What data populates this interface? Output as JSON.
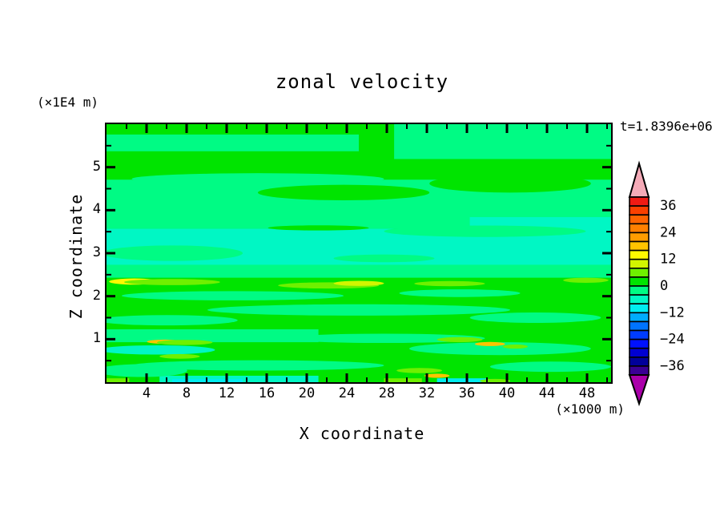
{
  "background_color": "#FFFFFF",
  "chart_data": {
    "type": "filled_contour_heatmap",
    "title": "zonal velocity",
    "time_annotation": "t=1.8396e+06",
    "xlabel": "X coordinate",
    "x_unit": "(×1000 m)",
    "zlabel": "Z coordinate",
    "z_unit": "(×1E4 m)",
    "x_range": [
      0,
      50.4
    ],
    "z_range": [
      0,
      6
    ],
    "x_major_ticks": [
      4,
      8,
      12,
      16,
      20,
      24,
      28,
      32,
      36,
      40,
      44,
      48
    ],
    "x_minor_ticks": [
      2,
      6,
      10,
      14,
      18,
      22,
      26,
      30,
      34,
      38,
      42,
      46,
      50
    ],
    "z_major_ticks": [
      1,
      2,
      3,
      4,
      5
    ],
    "z_minor_ticks": [
      0.5,
      1.5,
      2.5,
      3.5,
      4.5,
      5.5
    ],
    "contour_interval": 4,
    "value_range": [
      -40,
      40
    ],
    "colorbar": {
      "over_color": "#F5ABB8",
      "under_color": "#AA00AA",
      "top_value": 40,
      "step": 4,
      "colors_top_to_bottom": [
        "#F01B14",
        "#FB4000",
        "#FF6300",
        "#FF8000",
        "#FF9D00",
        "#FFC400",
        "#FFF900",
        "#D2F500",
        "#6FF000",
        "#00E400",
        "#00FB84",
        "#00F7C4",
        "#00EDF0",
        "#00ACFC",
        "#0074FF",
        "#003CFF",
        "#0011FF",
        "#0000D2",
        "#00009A",
        "#3A0094"
      ],
      "labels": [
        {
          "index": 1,
          "text": "36"
        },
        {
          "index": 4,
          "text": "24"
        },
        {
          "index": 7,
          "text": "12"
        },
        {
          "index": 10,
          "text": "0"
        },
        {
          "index": 13,
          "text": "−12"
        },
        {
          "index": 16,
          "text": "−24"
        },
        {
          "index": 19,
          "text": "−36"
        }
      ]
    },
    "field_value_bands": {
      "g": "0..4",
      "s": "-4..0",
      "t": "-8..-4",
      "c": "-12..-8",
      "ch": "4..8",
      "yg": "8..12",
      "y": "12..16",
      "gd": "16..20"
    },
    "field_colors": {
      "g": "#00E400",
      "s": "#00FB84",
      "t": "#00F7C4",
      "c": "#00EDF0",
      "ch": "#6FF000",
      "yg": "#D2F500",
      "y": "#FFF900",
      "gd": "#FFC400"
    },
    "field_regions": {
      "bands": [
        [
          "s",
          0.0,
          0.04,
          0.5,
          0.065
        ],
        [
          "s",
          0.57,
          0.0,
          0.43,
          0.135
        ],
        [
          "s",
          0.0,
          0.215,
          1.0,
          0.19
        ],
        [
          "t",
          0.72,
          0.36,
          0.28,
          0.1
        ],
        [
          "t",
          0.0,
          0.405,
          1.0,
          0.14
        ],
        [
          "s",
          0.0,
          0.545,
          1.0,
          0.05
        ],
        [
          "s",
          0.0,
          0.795,
          0.42,
          0.05
        ],
        [
          "t",
          0.105,
          0.975,
          0.315,
          0.025
        ],
        [
          "c",
          0.13,
          0.988,
          0.14,
          0.012
        ],
        [
          "ch",
          0.0,
          0.985,
          0.045,
          0.015
        ],
        [
          "ch",
          0.55,
          0.985,
          0.075,
          0.015
        ],
        [
          "c",
          0.655,
          0.985,
          0.1,
          0.015
        ]
      ],
      "blobs": [
        [
          "s",
          0.1,
          0.075,
          0.12,
          0.02
        ],
        [
          "s",
          0.35,
          0.068,
          0.1,
          0.014
        ],
        [
          "s",
          0.3,
          0.212,
          0.25,
          0.022
        ],
        [
          "g",
          0.47,
          0.265,
          0.17,
          0.03
        ],
        [
          "g",
          0.8,
          0.23,
          0.16,
          0.035
        ],
        [
          "s",
          0.75,
          0.415,
          0.2,
          0.022
        ],
        [
          "g",
          0.42,
          0.402,
          0.1,
          0.01
        ],
        [
          "s",
          0.13,
          0.5,
          0.14,
          0.03
        ],
        [
          "s",
          0.55,
          0.52,
          0.1,
          0.015
        ],
        [
          "y",
          0.055,
          0.61,
          0.05,
          0.012
        ],
        [
          "ch",
          0.13,
          0.612,
          0.095,
          0.012
        ],
        [
          "ch",
          0.44,
          0.625,
          0.1,
          0.012
        ],
        [
          "yg",
          0.5,
          0.617,
          0.05,
          0.01
        ],
        [
          "ch",
          0.68,
          0.618,
          0.07,
          0.01
        ],
        [
          "ch",
          0.95,
          0.605,
          0.045,
          0.01
        ],
        [
          "s",
          0.25,
          0.665,
          0.22,
          0.018
        ],
        [
          "s",
          0.7,
          0.655,
          0.12,
          0.015
        ],
        [
          "s",
          0.5,
          0.72,
          0.3,
          0.022
        ],
        [
          "s",
          0.12,
          0.76,
          0.14,
          0.02
        ],
        [
          "s",
          0.85,
          0.75,
          0.13,
          0.02
        ],
        [
          "t",
          0.1,
          0.875,
          0.115,
          0.018
        ],
        [
          "s",
          0.55,
          0.83,
          0.2,
          0.018
        ],
        [
          "s",
          0.78,
          0.87,
          0.18,
          0.025
        ],
        [
          "gd",
          0.115,
          0.843,
          0.035,
          0.008
        ],
        [
          "ch",
          0.155,
          0.846,
          0.055,
          0.01
        ],
        [
          "ch",
          0.145,
          0.9,
          0.04,
          0.009
        ],
        [
          "ch",
          0.7,
          0.835,
          0.045,
          0.01
        ],
        [
          "gd",
          0.76,
          0.852,
          0.03,
          0.008
        ],
        [
          "ch",
          0.81,
          0.862,
          0.025,
          0.008
        ],
        [
          "s",
          0.3,
          0.935,
          0.25,
          0.02
        ],
        [
          "s",
          0.07,
          0.955,
          0.09,
          0.025
        ],
        [
          "s",
          0.88,
          0.94,
          0.12,
          0.02
        ],
        [
          "ch",
          0.62,
          0.955,
          0.045,
          0.01
        ],
        [
          "gd",
          0.655,
          0.975,
          0.025,
          0.008
        ],
        [
          "ch",
          0.77,
          0.995,
          0.03,
          0.008
        ]
      ]
    }
  }
}
